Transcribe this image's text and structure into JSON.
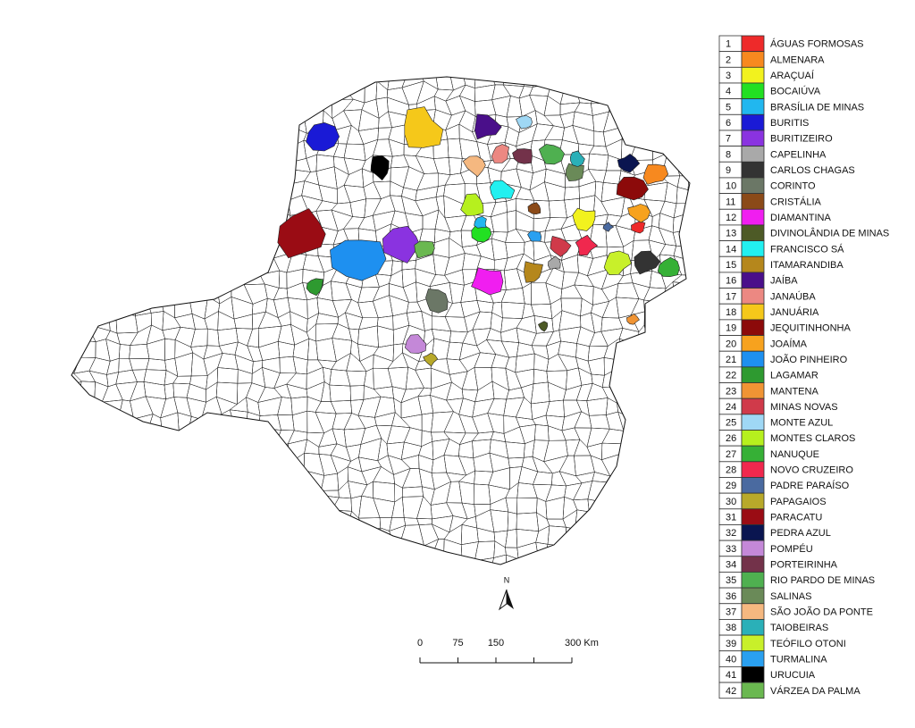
{
  "legend": [
    {
      "number": "1",
      "name": "ÁGUAS FORMOSAS",
      "color": "#ee2a2a"
    },
    {
      "number": "2",
      "name": "ALMENARA",
      "color": "#f7891f"
    },
    {
      "number": "3",
      "name": "ARAÇUAÍ",
      "color": "#f2f21e"
    },
    {
      "number": "4",
      "name": "BOCAIÚVA",
      "color": "#22e022"
    },
    {
      "number": "5",
      "name": "BRASÍLIA DE MINAS",
      "color": "#21b7ef"
    },
    {
      "number": "6",
      "name": "BURITIS",
      "color": "#1a1ad6"
    },
    {
      "number": "7",
      "name": "BURITIZEIRO",
      "color": "#8a33e0"
    },
    {
      "number": "8",
      "name": "CAPELINHA",
      "color": "#a9a9a9"
    },
    {
      "number": "9",
      "name": "CARLOS CHAGAS",
      "color": "#333333"
    },
    {
      "number": "10",
      "name": "CORINTO",
      "color": "#6b7766"
    },
    {
      "number": "11",
      "name": "CRISTÁLIA",
      "color": "#8b4a18"
    },
    {
      "number": "12",
      "name": "DIAMANTINA",
      "color": "#f01ef0"
    },
    {
      "number": "13",
      "name": "DIVINOLÂNDIA DE MINAS",
      "color": "#4d5a26"
    },
    {
      "number": "14",
      "name": "FRANCISCO SÁ",
      "color": "#22f0f0"
    },
    {
      "number": "15",
      "name": "ITAMARANDIBA",
      "color": "#b5871c"
    },
    {
      "number": "16",
      "name": "JAÍBA",
      "color": "#4a0f8a"
    },
    {
      "number": "17",
      "name": "JANAÚBA",
      "color": "#ec8882"
    },
    {
      "number": "18",
      "name": "JANUÁRIA",
      "color": "#f5c81a"
    },
    {
      "number": "19",
      "name": "JEQUITINHONHA",
      "color": "#8c0a0a"
    },
    {
      "number": "20",
      "name": "JOAÍMA",
      "color": "#f7a21e"
    },
    {
      "number": "21",
      "name": "JOÃO PINHEIRO",
      "color": "#1e90f0"
    },
    {
      "number": "22",
      "name": "LAGAMAR",
      "color": "#2e9a30"
    },
    {
      "number": "23",
      "name": "MANTENA",
      "color": "#f09434"
    },
    {
      "number": "24",
      "name": "MINAS NOVAS",
      "color": "#d03a4a"
    },
    {
      "number": "25",
      "name": "MONTE AZUL",
      "color": "#9fd8f5"
    },
    {
      "number": "26",
      "name": "MONTES CLAROS",
      "color": "#b6f01e"
    },
    {
      "number": "27",
      "name": "NANUQUE",
      "color": "#36b036"
    },
    {
      "number": "28",
      "name": "NOVO CRUZEIRO",
      "color": "#f0284e"
    },
    {
      "number": "29",
      "name": "PADRE PARAÍSO",
      "color": "#4a6aa0"
    },
    {
      "number": "30",
      "name": "PAPAGAIOS",
      "color": "#b8a92a"
    },
    {
      "number": "31",
      "name": "PARACATU",
      "color": "#9a0c14"
    },
    {
      "number": "32",
      "name": "PEDRA AZUL",
      "color": "#0a1550"
    },
    {
      "number": "33",
      "name": "POMPÉU",
      "color": "#c488d8"
    },
    {
      "number": "34",
      "name": "PORTEIRINHA",
      "color": "#73324a"
    },
    {
      "number": "35",
      "name": "RIO PARDO DE MINAS",
      "color": "#4fb050"
    },
    {
      "number": "36",
      "name": "SALINAS",
      "color": "#6a8a58"
    },
    {
      "number": "37",
      "name": "SÃO JOÃO DA PONTE",
      "color": "#f5b880"
    },
    {
      "number": "38",
      "name": "TAIOBEIRAS",
      "color": "#2ab0b8"
    },
    {
      "number": "39",
      "name": "TEÓFILO OTONI",
      "color": "#c8f02a"
    },
    {
      "number": "40",
      "name": "TURMALINA",
      "color": "#2aa0f0"
    },
    {
      "number": "41",
      "name": "URUCUIA",
      "color": "#000000"
    },
    {
      "number": "42",
      "name": "VÁRZEA DA PALMA",
      "color": "#6ab850"
    }
  ],
  "north_label": "N",
  "scale_bar": {
    "range": [
      0,
      300
    ],
    "ticks": [
      0,
      75,
      150,
      {
        "value": 225,
        "label": null
      },
      {
        "value": 300,
        "label": "300 Km"
      }
    ]
  }
}
